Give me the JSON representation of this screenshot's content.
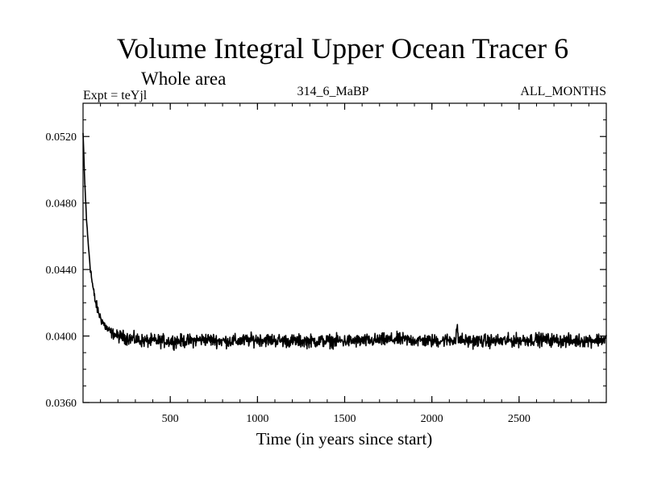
{
  "chart_data": {
    "type": "line",
    "title": "Volume Integral Upper Ocean Tracer 6",
    "subtitle": "Whole area",
    "experiment_label": "Expt = teYjl",
    "run_label": "314_6_MaBP",
    "period_label": "ALL_MONTHS",
    "xlabel": "Time (in years since start)",
    "ylabel": "",
    "xlim": [
      0,
      3000
    ],
    "ylim": [
      0.036,
      0.054
    ],
    "x_ticks": [
      500,
      1000,
      1500,
      2000,
      2500
    ],
    "x_tick_labels": [
      "500",
      "1000",
      "1500",
      "2000",
      "2500"
    ],
    "y_ticks": [
      0.036,
      0.04,
      0.044,
      0.048,
      0.052
    ],
    "y_tick_labels": [
      "0.0360",
      "0.0400",
      "0.0440",
      "0.0480",
      "0.0520"
    ],
    "grid": false,
    "series": [
      {
        "name": "Upper Ocean Tracer 6",
        "description": "decays from ~0.0522 at year 0 to an equilibrium near 0.0397 by ~year 300, then fluctuates +/-0.0004",
        "color": "#000000",
        "x": [
          0,
          10,
          20,
          30,
          40,
          50,
          60,
          70,
          80,
          90,
          100,
          120,
          140,
          160,
          180,
          200,
          250,
          300,
          350,
          400,
          500,
          600,
          700,
          800,
          900,
          1000,
          1200,
          1400,
          1600,
          1800,
          2000,
          2150,
          2200,
          2400,
          2600,
          2800,
          3000
        ],
        "values": [
          0.0522,
          0.0492,
          0.047,
          0.0455,
          0.0443,
          0.0434,
          0.0427,
          0.0421,
          0.0417,
          0.0414,
          0.0411,
          0.0407,
          0.0404,
          0.0402,
          0.0401,
          0.04,
          0.0399,
          0.0398,
          0.0397,
          0.0397,
          0.0397,
          0.0397,
          0.0398,
          0.0397,
          0.0397,
          0.0398,
          0.0397,
          0.0397,
          0.0397,
          0.0398,
          0.0397,
          0.0398,
          0.0397,
          0.0397,
          0.0398,
          0.0397,
          0.0398
        ]
      }
    ]
  },
  "colors": {
    "background": "#ffffff",
    "foreground": "#000000"
  }
}
